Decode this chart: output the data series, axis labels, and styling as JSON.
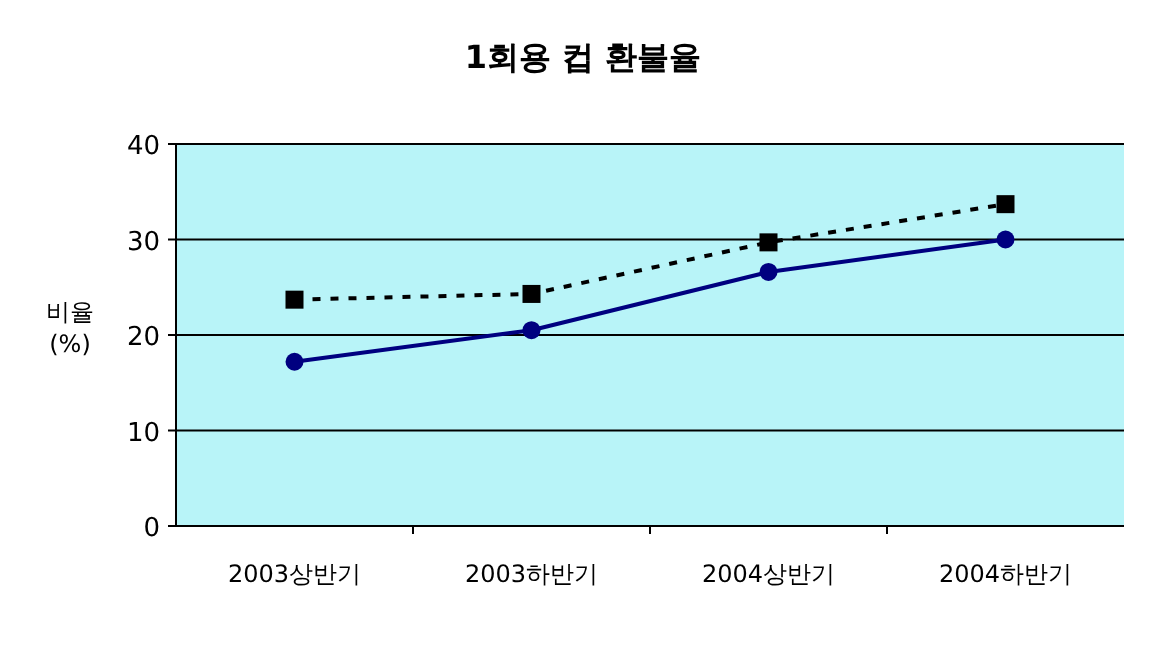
{
  "chart_data": {
    "type": "line",
    "title": "1회용 컵 환불율",
    "ylabel": "비율 (%)",
    "categories": [
      "2003상반기",
      "2003하반기",
      "2004상반기",
      "2004하반기"
    ],
    "series": [
      {
        "color": "#000080",
        "values": [
          17.2,
          20.5,
          26.6,
          30
        ],
        "marker": "circle",
        "line_style": "solid"
      },
      {
        "color": "#000000",
        "values": [
          23.7,
          24.3,
          29.7,
          33.7
        ],
        "marker": "square",
        "line_style": "dotted"
      }
    ],
    "ylim": [
      0,
      40
    ],
    "yticks": [
      0,
      10,
      20,
      30,
      40
    ],
    "grid": "y"
  }
}
